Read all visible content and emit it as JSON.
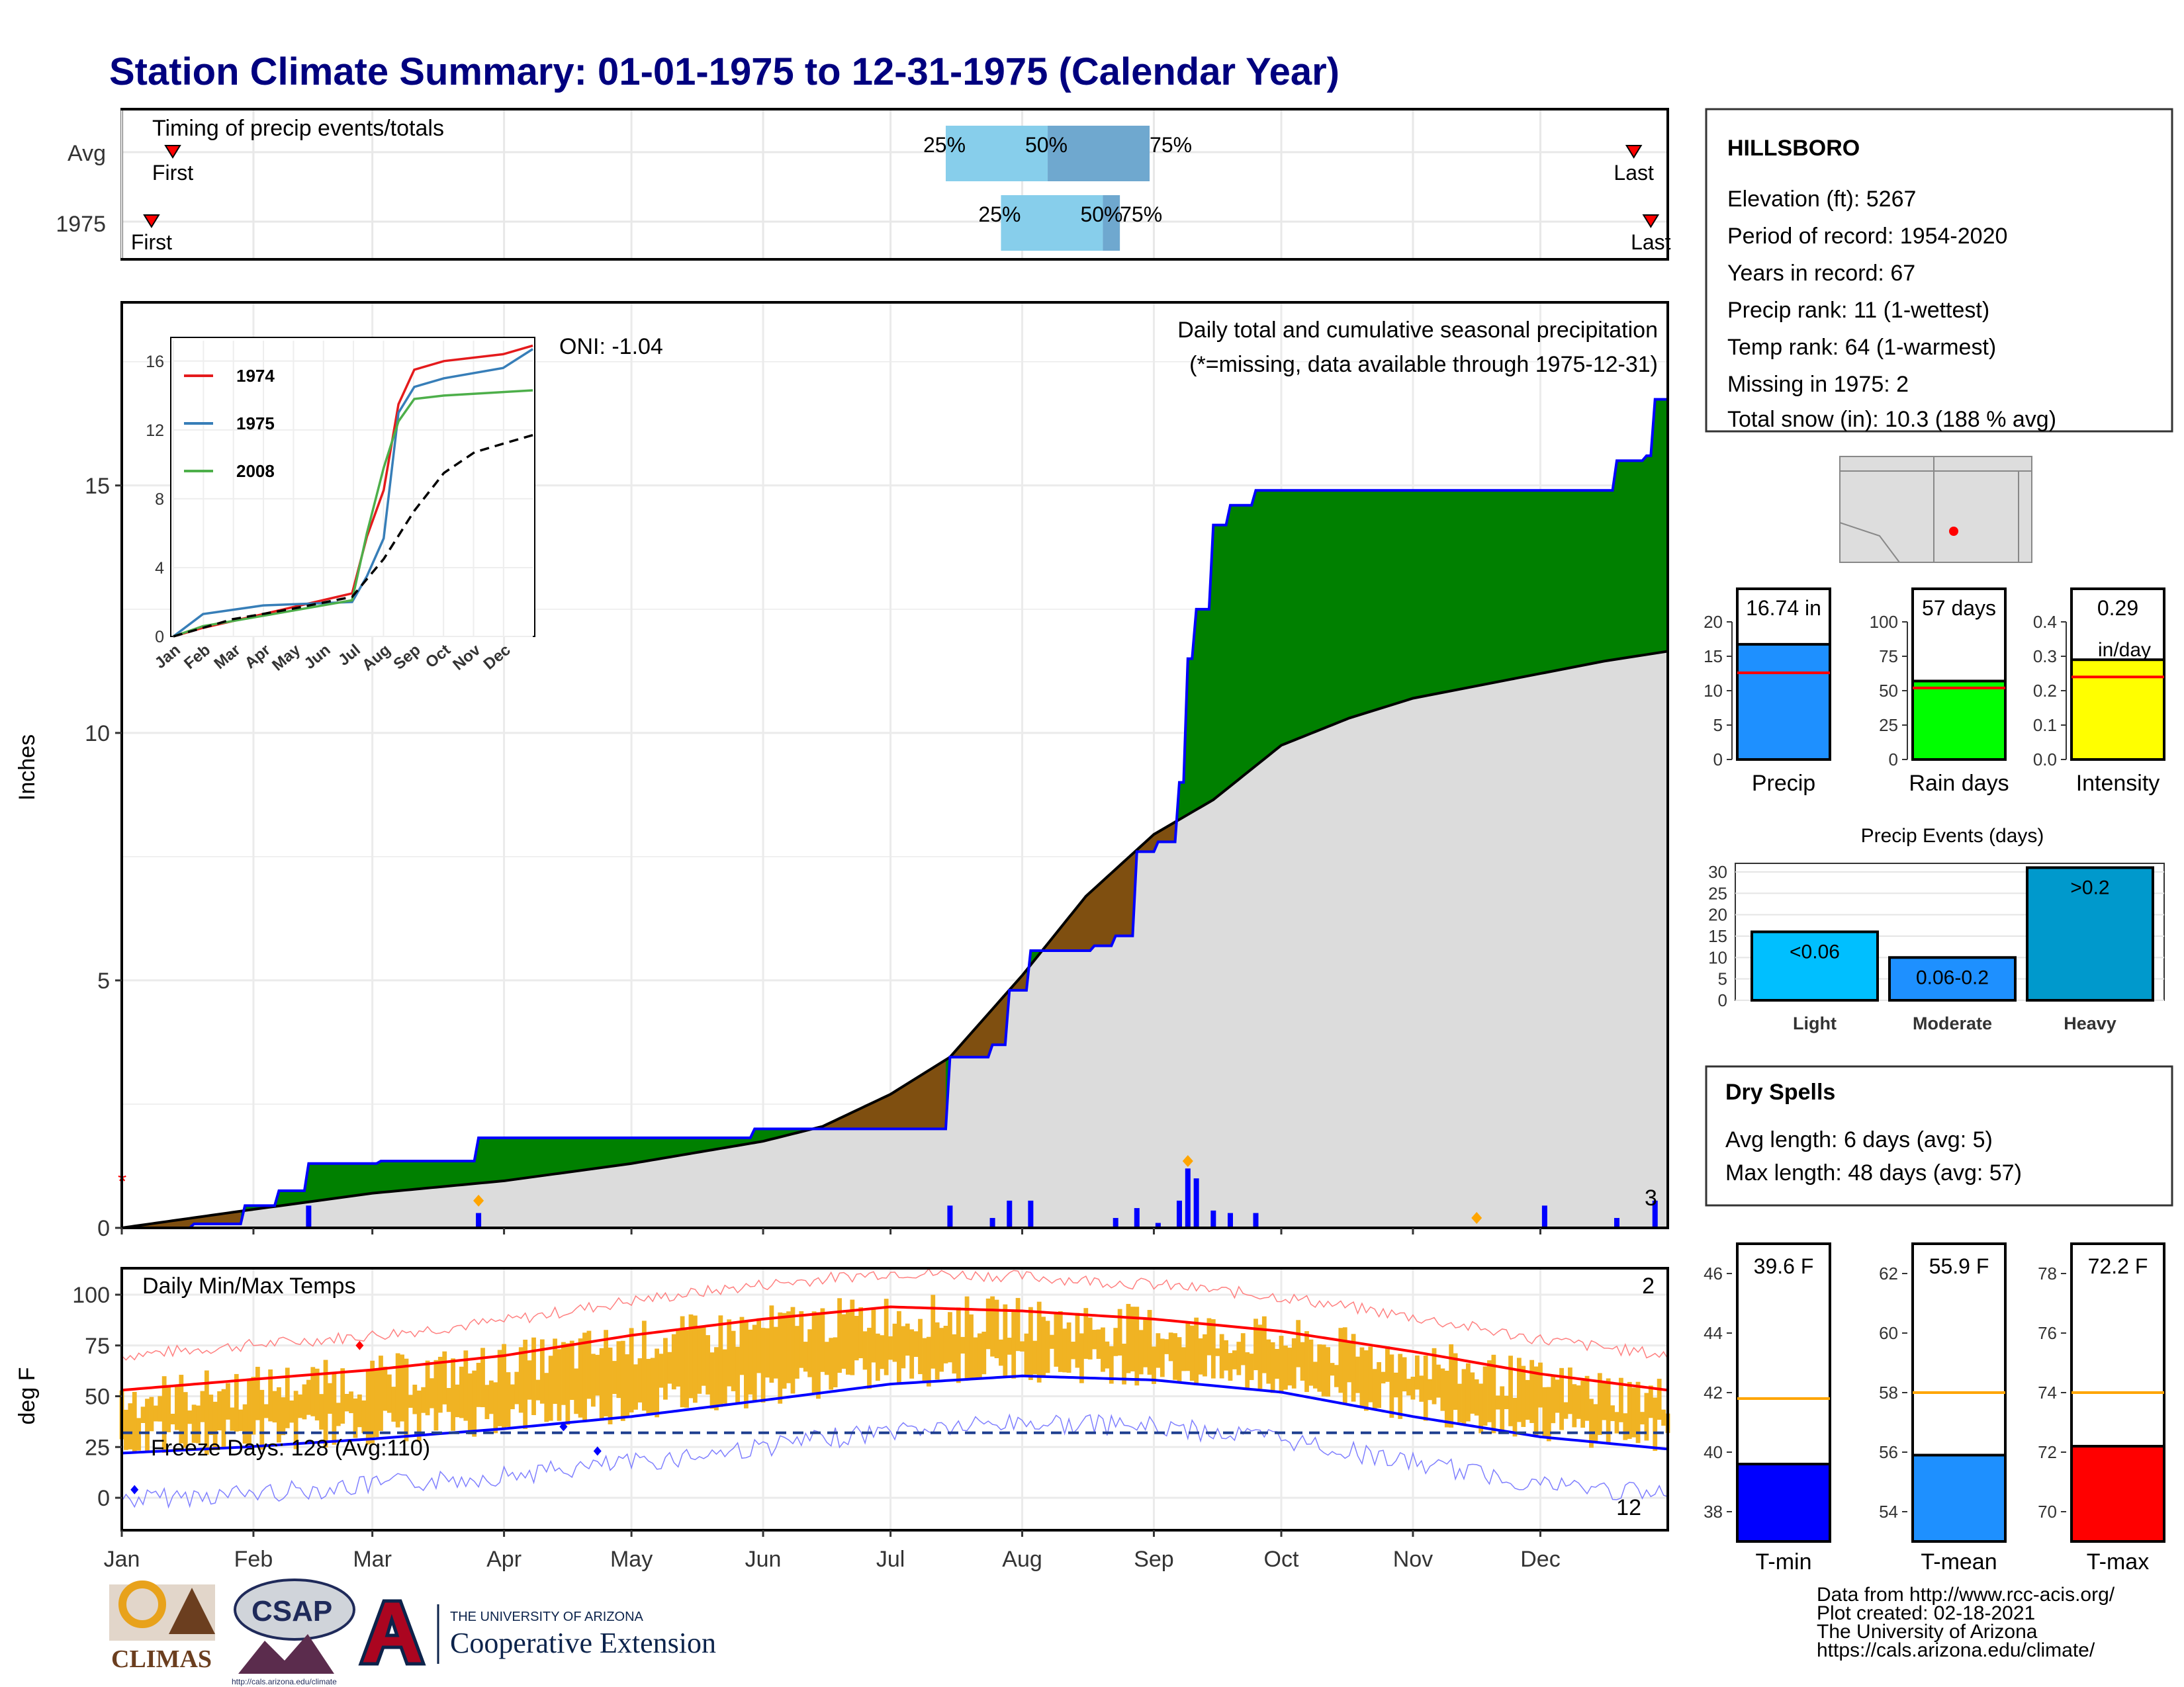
{
  "title": "Station Climate Summary: 01-01-1975 to 12-31-1975 (Calendar Year)",
  "colors": {
    "title": "#00007f",
    "precip_line": "#0000ff",
    "above": "#008000",
    "below": "#7f4f10",
    "normal_fill": "#dcdcdc",
    "bars": "#0000ff",
    "tmax": "#ff0000",
    "tmin": "#0000ff",
    "range_bars": "#f0b323",
    "dryspell": "#a52a2a"
  },
  "timing": {
    "label": "Timing of precip events/totals",
    "rows": [
      {
        "row": "Avg",
        "first": "First",
        "last": "Last",
        "p25": "25%",
        "p50": "50%",
        "p75": "75%",
        "first_date": "1975-01-13",
        "last_date": "1975-12-23",
        "q25": "1975-07-14",
        "q50": "1975-08-07",
        "q75": "1975-08-31"
      },
      {
        "row": "1975",
        "first": "First",
        "last": "Last",
        "p25": "25%",
        "p50": "50%",
        "p75": "75%",
        "first_date": "1975-01-08",
        "last_date": "1975-12-27",
        "q25": "1975-07-27",
        "q50": "1975-08-20",
        "q75": "1975-08-24"
      }
    ]
  },
  "precip_panel": {
    "caption": "Daily total and cumulative seasonal precipitation",
    "subcaption": "(*=missing, data available through 1975-12-31)",
    "oni": "ONI: -1.04",
    "ylabel": "Inches",
    "y_ticks": [
      "0",
      "5",
      "10",
      "15"
    ],
    "months": [
      "Jan",
      "Feb",
      "Mar",
      "Apr",
      "May",
      "Jun",
      "Jul",
      "Aug",
      "Sep",
      "Oct",
      "Nov",
      "Dec"
    ],
    "bar_count_label": "3"
  },
  "inset": {
    "y_ticks": [
      "0",
      "4",
      "8",
      "12",
      "16"
    ],
    "months": [
      "Jan",
      "Feb",
      "Mar",
      "Apr",
      "May",
      "Jun",
      "Jul",
      "Aug",
      "Sep",
      "Oct",
      "Nov",
      "Dec"
    ],
    "legend": [
      "1974",
      "1975",
      "2008"
    ]
  },
  "temp_panel": {
    "label": "Daily Min/Max Temps",
    "ylabel": "deg F",
    "y_ticks": [
      "0",
      "25",
      "50",
      "75",
      "100"
    ],
    "freeze": "Freeze Days: 128 (Avg:110)",
    "count_top": "2",
    "count_bottom": "12",
    "months": [
      "Jan",
      "Feb",
      "Mar",
      "Apr",
      "May",
      "Jun",
      "Jul",
      "Aug",
      "Sep",
      "Oct",
      "Nov",
      "Dec"
    ]
  },
  "station": {
    "name": "HILLSBORO",
    "lines": [
      "Elevation (ft): 5267",
      "Period of record: 1954-2020",
      "Years in record: 67",
      "Precip rank: 11 (1-wettest)",
      "Temp rank: 64 (1-warmest)",
      "Missing in 1975: 2",
      "Total snow (in): 10.3 (188 % avg)"
    ]
  },
  "summary_bars": [
    {
      "name": "Precip",
      "value_label": "16.74 in",
      "ticks": [
        "0",
        "5",
        "10",
        "15",
        "20"
      ]
    },
    {
      "name": "Rain days",
      "value_label": "57 days",
      "ticks": [
        "0",
        "25",
        "50",
        "75",
        "100"
      ]
    },
    {
      "name": "Intensity",
      "value_label": "0.29",
      "unit": "in/day",
      "ticks": [
        "0.0",
        "0.1",
        "0.2",
        "0.3",
        "0.4"
      ]
    }
  ],
  "events": {
    "title": "Precip Events (days)",
    "ticks": [
      "0",
      "5",
      "10",
      "15",
      "20",
      "25",
      "30"
    ],
    "bars": [
      {
        "name": "Light",
        "label": "<0.06"
      },
      {
        "name": "Moderate",
        "label": "0.06-0.2"
      },
      {
        "name": "Heavy",
        "label": ">0.2"
      }
    ]
  },
  "dry_spells": {
    "title": "Dry Spells",
    "avg": "Avg length: 6 days (avg: 5)",
    "max": "Max length: 48 days (avg: 57)"
  },
  "temp_bars": [
    {
      "name": "T-min",
      "value_label": "39.6 F",
      "ticks": [
        "38",
        "40",
        "42",
        "44",
        "46"
      ]
    },
    {
      "name": "T-mean",
      "value_label": "55.9 F",
      "ticks": [
        "54",
        "56",
        "58",
        "60",
        "62"
      ]
    },
    {
      "name": "T-max",
      "value_label": "72.2 F",
      "ticks": [
        "70",
        "72",
        "74",
        "76",
        "78"
      ]
    }
  ],
  "footer": {
    "lines": [
      "Data from http://www.rcc-acis.org/",
      "Plot created: 02-18-2021",
      "The University of Arizona",
      "https://cals.arizona.edu/climate/"
    ],
    "logo_climas": "CLIMAS",
    "logo_csap": "CSAP",
    "csap_url": "http://cals.arizona.edu/climate",
    "ua_line1": "THE UNIVERSITY OF ARIZONA",
    "ua_line2": "Cooperative Extension"
  },
  "chart_data": {
    "type": "area",
    "x_axis": "day of year 1975",
    "cumulative_1975": [
      [
        1,
        0
      ],
      [
        18,
        0.08
      ],
      [
        30,
        0.45
      ],
      [
        38,
        0.75
      ],
      [
        45,
        1.3
      ],
      [
        62,
        1.3
      ],
      [
        62,
        1.35
      ],
      [
        85,
        1.35
      ],
      [
        85,
        1.82
      ],
      [
        150,
        1.82
      ],
      [
        150,
        2.0
      ],
      [
        196,
        2.0
      ],
      [
        196,
        3.45
      ],
      [
        206,
        3.7
      ],
      [
        210,
        4.8
      ],
      [
        215,
        5.6
      ],
      [
        230,
        5.7
      ],
      [
        235,
        5.9
      ],
      [
        240,
        7.6
      ],
      [
        245,
        7.8
      ],
      [
        250,
        9.0
      ],
      [
        252,
        11.5
      ],
      [
        254,
        12.5
      ],
      [
        258,
        14.2
      ],
      [
        262,
        14.6
      ],
      [
        268,
        14.9
      ],
      [
        350,
        14.9
      ],
      [
        353,
        15.5
      ],
      [
        360,
        15.6
      ],
      [
        362,
        16.74
      ],
      [
        365,
        16.74
      ]
    ],
    "normal_cumulative": [
      [
        1,
        0
      ],
      [
        30,
        0.35
      ],
      [
        60,
        0.7
      ],
      [
        91,
        0.95
      ],
      [
        121,
        1.3
      ],
      [
        152,
        1.75
      ],
      [
        166,
        2.05
      ],
      [
        182,
        2.7
      ],
      [
        196,
        3.45
      ],
      [
        213,
        5.1
      ],
      [
        228,
        6.7
      ],
      [
        244,
        7.95
      ],
      [
        258,
        8.65
      ],
      [
        274,
        9.75
      ],
      [
        290,
        10.3
      ],
      [
        305,
        10.7
      ],
      [
        320,
        10.95
      ],
      [
        335,
        11.2
      ],
      [
        350,
        11.45
      ],
      [
        365,
        11.65
      ]
    ],
    "daily_precip": [
      [
        45,
        0.45
      ],
      [
        85,
        0.3
      ],
      [
        150,
        0.0
      ],
      [
        196,
        0.45
      ],
      [
        206,
        0.2
      ],
      [
        210,
        0.55
      ],
      [
        215,
        0.55
      ],
      [
        235,
        0.2
      ],
      [
        240,
        0.4
      ],
      [
        245,
        0.1
      ],
      [
        250,
        0.55
      ],
      [
        252,
        1.2
      ],
      [
        254,
        1.0
      ],
      [
        258,
        0.35
      ],
      [
        262,
        0.3
      ],
      [
        268,
        0.3
      ],
      [
        336,
        0.45
      ],
      [
        353,
        0.2
      ],
      [
        362,
        0.55
      ]
    ],
    "inset_series": [
      {
        "name": "1974",
        "points": [
          [
            0,
            0
          ],
          [
            30,
            0.5
          ],
          [
            91,
            1.3
          ],
          [
            181,
            2.5
          ],
          [
            196,
            5.8
          ],
          [
            213,
            8.5
          ],
          [
            228,
            13.5
          ],
          [
            244,
            15.5
          ],
          [
            274,
            16.0
          ],
          [
            334,
            16.4
          ],
          [
            364,
            16.9
          ]
        ]
      },
      {
        "name": "1975",
        "points": [
          [
            0,
            0
          ],
          [
            30,
            1.3
          ],
          [
            91,
            1.8
          ],
          [
            181,
            2.0
          ],
          [
            196,
            3.5
          ],
          [
            213,
            5.7
          ],
          [
            228,
            13.0
          ],
          [
            244,
            14.5
          ],
          [
            274,
            15.0
          ],
          [
            334,
            15.6
          ],
          [
            364,
            16.7
          ]
        ]
      },
      {
        "name": "2008",
        "points": [
          [
            0,
            0
          ],
          [
            30,
            0.6
          ],
          [
            91,
            1.2
          ],
          [
            181,
            2.1
          ],
          [
            196,
            6.0
          ],
          [
            213,
            9.8
          ],
          [
            228,
            12.5
          ],
          [
            244,
            13.8
          ],
          [
            274,
            14.0
          ],
          [
            334,
            14.2
          ],
          [
            364,
            14.3
          ]
        ]
      },
      {
        "name": "normal",
        "points": [
          [
            0,
            0
          ],
          [
            60,
            1.0
          ],
          [
            120,
            1.6
          ],
          [
            181,
            2.3
          ],
          [
            213,
            4.5
          ],
          [
            244,
            7.3
          ],
          [
            274,
            9.5
          ],
          [
            305,
            10.7
          ],
          [
            334,
            11.2
          ],
          [
            364,
            11.7
          ]
        ]
      }
    ],
    "temp_avg_max": [
      [
        1,
        53
      ],
      [
        30,
        58
      ],
      [
        60,
        63
      ],
      [
        91,
        70
      ],
      [
        121,
        80
      ],
      [
        152,
        88
      ],
      [
        182,
        94
      ],
      [
        213,
        92
      ],
      [
        244,
        88
      ],
      [
        274,
        82
      ],
      [
        305,
        72
      ],
      [
        335,
        61
      ],
      [
        365,
        53
      ]
    ],
    "temp_avg_min": [
      [
        1,
        22
      ],
      [
        30,
        25
      ],
      [
        60,
        29
      ],
      [
        91,
        34
      ],
      [
        121,
        40
      ],
      [
        152,
        48
      ],
      [
        182,
        56
      ],
      [
        213,
        60
      ],
      [
        244,
        58
      ],
      [
        274,
        52
      ],
      [
        305,
        40
      ],
      [
        335,
        30
      ],
      [
        365,
        24
      ]
    ],
    "freeze_line": 32,
    "summary_values": {
      "precip_in": 16.74,
      "precip_avg": 12.6,
      "rain_days": 57,
      "rain_days_avg": 52,
      "intensity": 0.29,
      "intensity_avg": 0.24
    },
    "events_days": {
      "Light": 16,
      "Moderate": 10,
      "Heavy": 31
    },
    "temp_values": {
      "tmin": 39.6,
      "tmin_avg": 41.8,
      "tmean": 55.9,
      "tmean_avg": 58.0,
      "tmax": 72.2,
      "tmax_avg": 74.0
    }
  }
}
